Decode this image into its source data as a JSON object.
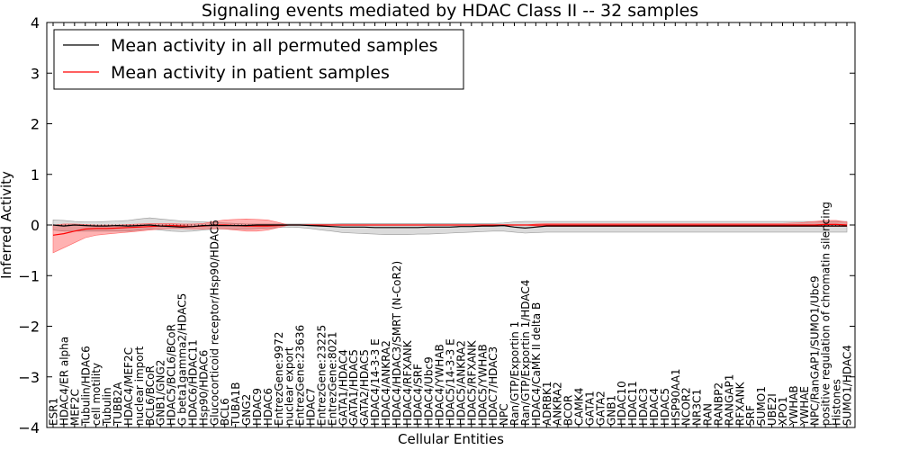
{
  "chart_data": {
    "type": "line",
    "title": "Signaling events mediated by HDAC Class II -- 32 samples",
    "xlabel": "Cellular Entities",
    "ylabel": "Inferred Activity",
    "ylim": [
      -4,
      4
    ],
    "yticks": [
      -4,
      -3,
      -2,
      -1,
      0,
      1,
      2,
      3,
      4
    ],
    "ytick_labels": [
      "−4",
      "−3",
      "−2",
      "−1",
      "0",
      "1",
      "2",
      "3",
      "4"
    ],
    "legend_position": "top-left",
    "legend": [
      {
        "label": "Mean activity in all permuted samples",
        "color": "#000000"
      },
      {
        "label": "Mean activity in patient samples",
        "color": "#ff0000"
      }
    ],
    "categories": [
      "ESR1",
      "HDAC4/ER alpha",
      "MEF2C",
      "Tubulin/HDAC6",
      "cell motility",
      "Tubulin",
      "TUBB2A",
      "HDAC4/MEF2C",
      "nuclear import",
      "BCL6/BCoR",
      "GNB1/GNG2",
      "HDAC5/BCL6/BCoR",
      "G beta1gamma2/HDAC5",
      "HDAC6/HDAC11",
      "Hsp90/HDAC6",
      "Glucocorticoid receptor/Hsp90/HDAC6",
      "BCL6",
      "TUBA1B",
      "GNG2",
      "HDAC9",
      "HDAC6",
      "EntrezGene:9972",
      "nuclear export",
      "EntrezGene:23636",
      "HDAC7",
      "EntrezGene:23225",
      "EntrezGene:8021",
      "GATA1/HDAC4",
      "GATA1/HDAC5",
      "GATA2/HDAC5",
      "HDAC4/14-3-3 E",
      "HDAC4/ANKRA2",
      "HDAC4/HDAC3/SMRT (N-CoR2)",
      "HDAC4/RFXANK",
      "HDAC4/SRF",
      "HDAC4/Ubc9",
      "HDAC4/YWHAB",
      "HDAC5/14-3-3 E",
      "HDAC5/ANKRA2",
      "HDAC5/RFXANK",
      "HDAC5/YWHAB",
      "HDAC7/HDAC3",
      "NPC",
      "Ran/GTP/Exportin 1",
      "Ran/GTP/Exportin 1/HDAC4",
      "HDAC4/CaMK II delta B",
      "ADRBK1",
      "ANKRA2",
      "BCOR",
      "CAMK4",
      "GATA1",
      "GATA2",
      "GNB1",
      "HDAC10",
      "HDAC11",
      "HDAC3",
      "HDAC4",
      "HDAC5",
      "HSP90AA1",
      "NCOR2",
      "NR3C1",
      "RAN",
      "RANBP2",
      "RANGAP1",
      "RFXANK",
      "SRF",
      "SUMO1",
      "UBE2I",
      "XPO1",
      "YWHAB",
      "YWHAE",
      "NPC/RanGAP1/SUMO1/Ubc9",
      "positive regulation of chromatin silencing",
      "Histones",
      "SUMO1/HDAC4"
    ],
    "series": [
      {
        "name": "Mean activity in patient samples",
        "color": "#ff0000",
        "values": [
          -0.2,
          -0.17,
          -0.12,
          -0.08,
          -0.07,
          -0.07,
          -0.06,
          -0.05,
          -0.04,
          -0.03,
          -0.02,
          -0.01,
          -0.02,
          -0.03,
          -0.02,
          0.0,
          0.0,
          -0.01,
          -0.02,
          -0.02,
          -0.02,
          -0.01,
          0.0,
          0.0,
          0.0,
          0.0,
          0.0,
          0.0,
          0.0,
          0.0,
          0.0,
          0.0,
          0.0,
          0.0,
          0.0,
          0.0,
          0.0,
          0.0,
          0.0,
          0.0,
          0.0,
          0.0,
          0.0,
          0.0,
          0.0,
          0.0,
          0.0,
          0.0,
          0.0,
          0.0,
          0.0,
          0.0,
          0.0,
          0.0,
          0.0,
          0.0,
          0.0,
          0.0,
          0.0,
          0.0,
          0.0,
          0.0,
          0.0,
          0.0,
          0.0,
          0.0,
          0.0,
          0.0,
          0.0,
          0.0,
          0.0,
          0.0,
          0.01,
          0.01,
          0.0
        ],
        "band_upper": [
          0.0,
          0.02,
          0.02,
          0.01,
          0.0,
          0.0,
          0.0,
          0.01,
          0.02,
          0.03,
          0.03,
          0.03,
          0.02,
          0.02,
          0.03,
          0.07,
          0.1,
          0.11,
          0.12,
          0.11,
          0.1,
          0.05,
          0.0,
          0.0,
          0.0,
          0.0,
          0.0,
          0.0,
          0.0,
          0.0,
          0.0,
          0.0,
          0.0,
          0.0,
          0.0,
          0.0,
          0.0,
          0.0,
          0.0,
          0.0,
          0.0,
          0.0,
          0.0,
          0.0,
          0.0,
          0.02,
          0.03,
          0.03,
          0.03,
          0.03,
          0.03,
          0.03,
          0.03,
          0.03,
          0.03,
          0.03,
          0.03,
          0.03,
          0.03,
          0.03,
          0.03,
          0.03,
          0.03,
          0.03,
          0.03,
          0.03,
          0.03,
          0.03,
          0.03,
          0.04,
          0.05,
          0.07,
          0.09,
          0.09,
          0.06
        ],
        "band_lower": [
          -0.55,
          -0.45,
          -0.35,
          -0.25,
          -0.2,
          -0.18,
          -0.16,
          -0.14,
          -0.12,
          -0.1,
          -0.08,
          -0.07,
          -0.07,
          -0.08,
          -0.08,
          -0.07,
          -0.08,
          -0.1,
          -0.12,
          -0.12,
          -0.1,
          -0.05,
          0.0,
          0.0,
          0.0,
          0.0,
          0.0,
          0.0,
          0.0,
          0.0,
          0.0,
          0.0,
          0.0,
          0.0,
          0.0,
          0.0,
          0.0,
          0.0,
          0.0,
          0.0,
          0.0,
          0.0,
          0.0,
          0.0,
          0.0,
          -0.02,
          -0.03,
          -0.03,
          -0.03,
          -0.03,
          -0.03,
          -0.03,
          -0.03,
          -0.03,
          -0.03,
          -0.03,
          -0.03,
          -0.03,
          -0.03,
          -0.03,
          -0.03,
          -0.03,
          -0.03,
          -0.03,
          -0.03,
          -0.03,
          -0.03,
          -0.03,
          -0.03,
          -0.03,
          -0.03,
          -0.03,
          -0.03,
          -0.03,
          -0.03
        ]
      },
      {
        "name": "Mean activity in all permuted samples",
        "color": "#000000",
        "values": [
          0.0,
          -0.02,
          0.0,
          -0.01,
          -0.02,
          -0.02,
          -0.01,
          -0.02,
          -0.01,
          0.0,
          -0.02,
          -0.03,
          -0.04,
          -0.03,
          -0.01,
          -0.01,
          -0.01,
          -0.01,
          -0.01,
          0.0,
          0.0,
          0.0,
          0.0,
          0.0,
          -0.01,
          -0.02,
          -0.03,
          -0.04,
          -0.04,
          -0.04,
          -0.05,
          -0.05,
          -0.05,
          -0.05,
          -0.05,
          -0.04,
          -0.04,
          -0.04,
          -0.03,
          -0.03,
          -0.02,
          -0.02,
          -0.01,
          -0.04,
          -0.06,
          -0.04,
          -0.02,
          -0.02,
          -0.02,
          -0.02,
          -0.02,
          -0.02,
          -0.02,
          -0.02,
          -0.02,
          -0.02,
          -0.02,
          -0.02,
          -0.02,
          -0.02,
          -0.02,
          -0.02,
          -0.02,
          -0.02,
          -0.02,
          -0.02,
          -0.02,
          -0.02,
          -0.02,
          -0.02,
          -0.02,
          -0.02,
          -0.02,
          -0.02,
          -0.02
        ],
        "band_upper": [
          0.1,
          0.09,
          0.07,
          0.06,
          0.06,
          0.07,
          0.08,
          0.09,
          0.12,
          0.14,
          0.12,
          0.1,
          0.08,
          0.07,
          0.06,
          0.05,
          0.04,
          0.03,
          0.02,
          0.02,
          0.02,
          0.02,
          0.02,
          0.02,
          0.02,
          0.02,
          0.02,
          0.03,
          0.03,
          0.03,
          0.03,
          0.03,
          0.03,
          0.03,
          0.03,
          0.03,
          0.03,
          0.03,
          0.03,
          0.03,
          0.03,
          0.03,
          0.04,
          0.06,
          0.07,
          0.07,
          0.07,
          0.07,
          0.07,
          0.07,
          0.07,
          0.07,
          0.07,
          0.07,
          0.07,
          0.07,
          0.07,
          0.07,
          0.07,
          0.07,
          0.07,
          0.07,
          0.07,
          0.07,
          0.07,
          0.07,
          0.07,
          0.07,
          0.07,
          0.07,
          0.07,
          0.07,
          0.07,
          0.07,
          0.07
        ],
        "band_lower": [
          -0.1,
          -0.12,
          -0.12,
          -0.12,
          -0.12,
          -0.12,
          -0.12,
          -0.12,
          -0.1,
          -0.08,
          -0.1,
          -0.12,
          -0.13,
          -0.12,
          -0.1,
          -0.08,
          -0.08,
          -0.08,
          -0.08,
          -0.07,
          -0.06,
          -0.05,
          -0.04,
          -0.05,
          -0.07,
          -0.1,
          -0.12,
          -0.15,
          -0.16,
          -0.17,
          -0.18,
          -0.19,
          -0.19,
          -0.19,
          -0.18,
          -0.18,
          -0.17,
          -0.16,
          -0.15,
          -0.14,
          -0.13,
          -0.12,
          -0.12,
          -0.14,
          -0.16,
          -0.15,
          -0.14,
          -0.14,
          -0.14,
          -0.14,
          -0.14,
          -0.14,
          -0.14,
          -0.14,
          -0.14,
          -0.14,
          -0.14,
          -0.14,
          -0.14,
          -0.14,
          -0.14,
          -0.14,
          -0.14,
          -0.14,
          -0.14,
          -0.14,
          -0.14,
          -0.14,
          -0.14,
          -0.14,
          -0.14,
          -0.14,
          -0.14,
          -0.14,
          -0.14
        ]
      }
    ]
  }
}
